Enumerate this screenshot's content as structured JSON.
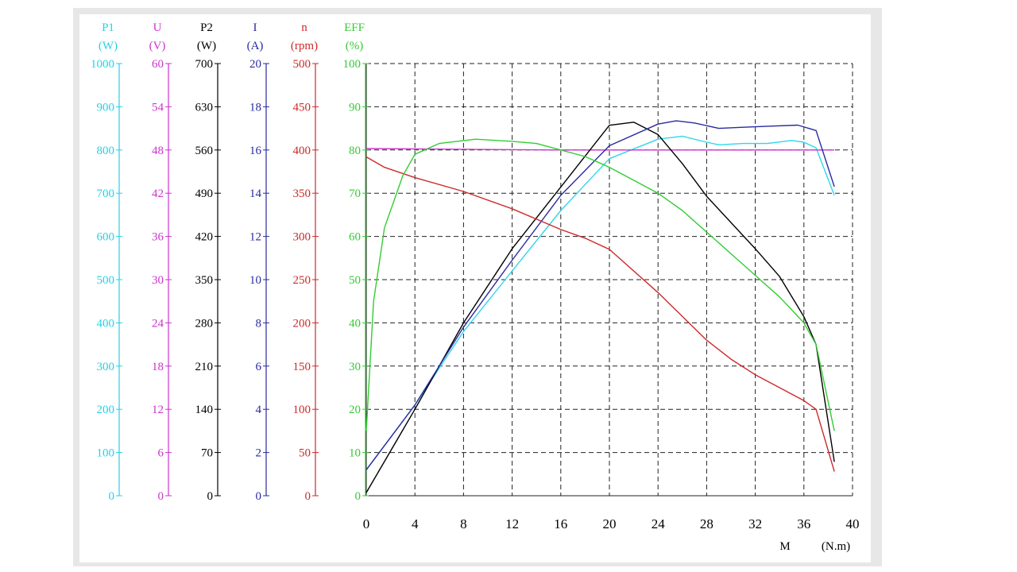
{
  "chart_data": {
    "type": "line",
    "x_axis": {
      "label": "M",
      "unit": "(N.m)",
      "range": [
        0,
        40
      ],
      "ticks": [
        "0",
        "4",
        "8",
        "12",
        "16",
        "20",
        "24",
        "28",
        "32",
        "36",
        "40"
      ]
    },
    "y_axes": [
      {
        "name": "P1",
        "unit": "(W)",
        "color": "#22d3e6",
        "range": [
          0,
          1000
        ],
        "ticks": [
          "0",
          "100",
          "200",
          "300",
          "400",
          "500",
          "600",
          "700",
          "800",
          "900",
          "1000"
        ]
      },
      {
        "name": "U",
        "unit": "(V)",
        "color": "#cc33cc",
        "range": [
          0,
          60
        ],
        "ticks": [
          "0",
          "6",
          "12",
          "18",
          "24",
          "30",
          "36",
          "42",
          "48",
          "54",
          "60"
        ]
      },
      {
        "name": "P2",
        "unit": "(W)",
        "color": "#000000",
        "range": [
          0,
          700
        ],
        "ticks": [
          "0",
          "70",
          "140",
          "210",
          "280",
          "350",
          "420",
          "490",
          "560",
          "630",
          "700"
        ]
      },
      {
        "name": "I",
        "unit": "(A)",
        "color": "#2a2aa0",
        "range": [
          0,
          20
        ],
        "ticks": [
          "0",
          "2",
          "4",
          "6",
          "8",
          "10",
          "12",
          "14",
          "16",
          "18",
          "20"
        ]
      },
      {
        "name": "n",
        "unit": "(rpm)",
        "color": "#cc2a2a",
        "range": [
          0,
          500
        ],
        "ticks": [
          "0",
          "50",
          "100",
          "150",
          "200",
          "250",
          "300",
          "350",
          "400",
          "450",
          "500"
        ]
      },
      {
        "name": "EFF",
        "unit": "(%)",
        "color": "#33cc33",
        "range": [
          0,
          100
        ],
        "ticks": [
          "0",
          "10",
          "20",
          "30",
          "40",
          "50",
          "60",
          "70",
          "80",
          "90",
          "100"
        ]
      }
    ],
    "grid": true,
    "series": [
      {
        "name": "P1",
        "axis": 0,
        "color": "#33d6e8",
        "points": [
          [
            0,
            60
          ],
          [
            4,
            210
          ],
          [
            8,
            380
          ],
          [
            12,
            520
          ],
          [
            16,
            660
          ],
          [
            20,
            780
          ],
          [
            24,
            825
          ],
          [
            26,
            832
          ],
          [
            28,
            818
          ],
          [
            29,
            812
          ],
          [
            31,
            815
          ],
          [
            33,
            815
          ],
          [
            35,
            822
          ],
          [
            36,
            818
          ],
          [
            37,
            805
          ],
          [
            38.5,
            695
          ]
        ]
      },
      {
        "name": "U",
        "axis": 1,
        "color": "#cc33cc",
        "points": [
          [
            0,
            48.2
          ],
          [
            8,
            48.1
          ],
          [
            16,
            48
          ],
          [
            24,
            48
          ],
          [
            32,
            48
          ],
          [
            38.5,
            48
          ]
        ]
      },
      {
        "name": "P2",
        "axis": 2,
        "color": "#000000",
        "points": [
          [
            0,
            5
          ],
          [
            4,
            140
          ],
          [
            8,
            280
          ],
          [
            12,
            400
          ],
          [
            16,
            500
          ],
          [
            20,
            600
          ],
          [
            22,
            605
          ],
          [
            24,
            585
          ],
          [
            26,
            538
          ],
          [
            28,
            485
          ],
          [
            32,
            400
          ],
          [
            34,
            355
          ],
          [
            36,
            290
          ],
          [
            37,
            245
          ],
          [
            38.5,
            55
          ]
        ]
      },
      {
        "name": "I",
        "axis": 3,
        "color": "#2a2aa0",
        "points": [
          [
            0,
            1.2
          ],
          [
            4,
            4.2
          ],
          [
            8,
            7.8
          ],
          [
            12,
            10.9
          ],
          [
            16,
            13.9
          ],
          [
            20,
            16.2
          ],
          [
            24,
            17.2
          ],
          [
            25.5,
            17.35
          ],
          [
            27,
            17.25
          ],
          [
            29,
            17
          ],
          [
            31,
            17.05
          ],
          [
            33,
            17.1
          ],
          [
            35.5,
            17.15
          ],
          [
            37,
            16.9
          ],
          [
            38.5,
            14.3
          ]
        ]
      },
      {
        "name": "n",
        "axis": 4,
        "color": "#cc2a2a",
        "points": [
          [
            0,
            392
          ],
          [
            1.5,
            380
          ],
          [
            4,
            368
          ],
          [
            8,
            352
          ],
          [
            12,
            332
          ],
          [
            16,
            308
          ],
          [
            18,
            298
          ],
          [
            20,
            285
          ],
          [
            24,
            235
          ],
          [
            28,
            180
          ],
          [
            30,
            158
          ],
          [
            32,
            140
          ],
          [
            36,
            110
          ],
          [
            37,
            100
          ],
          [
            38.5,
            28
          ]
        ]
      },
      {
        "name": "EFF",
        "axis": 5,
        "color": "#33cc33",
        "points": [
          [
            0,
            15
          ],
          [
            0.6,
            45
          ],
          [
            1.5,
            62
          ],
          [
            3,
            74
          ],
          [
            4,
            79
          ],
          [
            6,
            81.5
          ],
          [
            9,
            82.5
          ],
          [
            12,
            82
          ],
          [
            14,
            81.5
          ],
          [
            16,
            80
          ],
          [
            18,
            78.5
          ],
          [
            20,
            76
          ],
          [
            22,
            73
          ],
          [
            24,
            70
          ],
          [
            26,
            66
          ],
          [
            28,
            61
          ],
          [
            30,
            56
          ],
          [
            32,
            51
          ],
          [
            34,
            46
          ],
          [
            36,
            40
          ],
          [
            37,
            35
          ],
          [
            38.5,
            15
          ]
        ]
      }
    ]
  }
}
